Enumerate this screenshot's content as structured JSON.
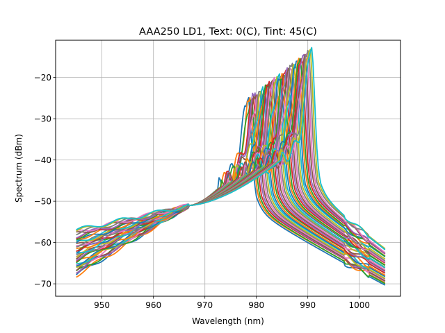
{
  "chart_data": {
    "type": "line",
    "title": "AAA250 LD1, Text: 0(C), Tint: 45(C)",
    "xlabel": "Wavelength (nm)",
    "ylabel": "Spectrum (dBm)",
    "xlim": [
      941,
      1008
    ],
    "ylim": [
      -73,
      -11
    ],
    "xticks": [
      950,
      960,
      970,
      980,
      990,
      1000
    ],
    "yticks": [
      -70,
      -60,
      -50,
      -40,
      -30,
      -20
    ],
    "xtick_labels": [
      "950",
      "960",
      "970",
      "980",
      "990",
      "1000"
    ],
    "ytick_labels": [
      "−70",
      "−60",
      "−50",
      "−40",
      "−30",
      "−20"
    ],
    "grid": true,
    "legend": "none",
    "x_range": [
      945,
      1005
    ],
    "series_count": 40,
    "series_parameters": {
      "value_at_945": {
        "first": -68.0,
        "last": -57.0
      },
      "value_at_970": -49.0,
      "value_at_1005": {
        "first": -70.2,
        "last": -61.5
      },
      "peak_wavelength": {
        "first": 978.5,
        "last": 990.8
      },
      "peak_level": {
        "first": -25.5,
        "last": -13.0
      }
    },
    "colors": [
      "#1f77b4",
      "#ff7f0e",
      "#2ca02c",
      "#d62728",
      "#9467bd",
      "#8c564b",
      "#e377c2",
      "#7f7f7f",
      "#bcbd22",
      "#17becf"
    ]
  }
}
